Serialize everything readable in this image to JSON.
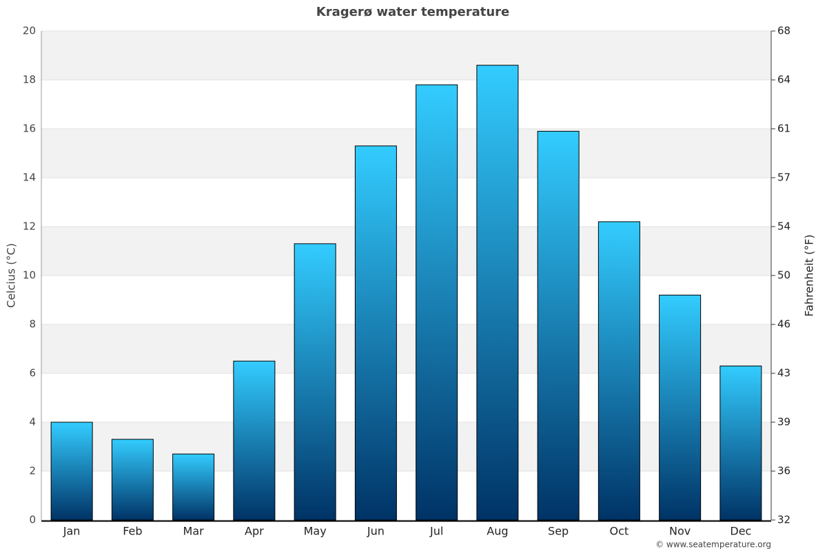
{
  "chart_data": {
    "type": "bar",
    "title": "Kragerø water temperature",
    "categories": [
      "Jan",
      "Feb",
      "Mar",
      "Apr",
      "May",
      "Jun",
      "Jul",
      "Aug",
      "Sep",
      "Oct",
      "Nov",
      "Dec"
    ],
    "values": [
      4.0,
      3.3,
      2.7,
      6.5,
      11.3,
      15.3,
      17.8,
      18.6,
      15.9,
      12.2,
      9.2,
      6.3
    ],
    "gradient": [
      "#33ccff",
      "#003366"
    ],
    "ylabel": "Celcius (°C)",
    "y2label": "Fahrenheit (°F)",
    "ylim": [
      0,
      20
    ],
    "yticks": [
      0,
      2,
      4,
      6,
      8,
      10,
      12,
      14,
      16,
      18,
      20
    ],
    "y2lim": [
      32,
      68
    ],
    "y2ticks": [
      32,
      {
        "value": 35.6,
        "label": "36"
      },
      {
        "value": 39.2,
        "label": "39"
      },
      {
        "value": 42.8,
        "label": "43"
      },
      {
        "value": 46.4,
        "label": "46"
      },
      50,
      {
        "value": 53.6,
        "label": "54"
      },
      {
        "value": 57.2,
        "label": "57"
      },
      {
        "value": 60.8,
        "label": "61"
      },
      {
        "value": 64.4,
        "label": "64"
      },
      68
    ],
    "grid": true,
    "source": "© www.seatemperature.org"
  }
}
